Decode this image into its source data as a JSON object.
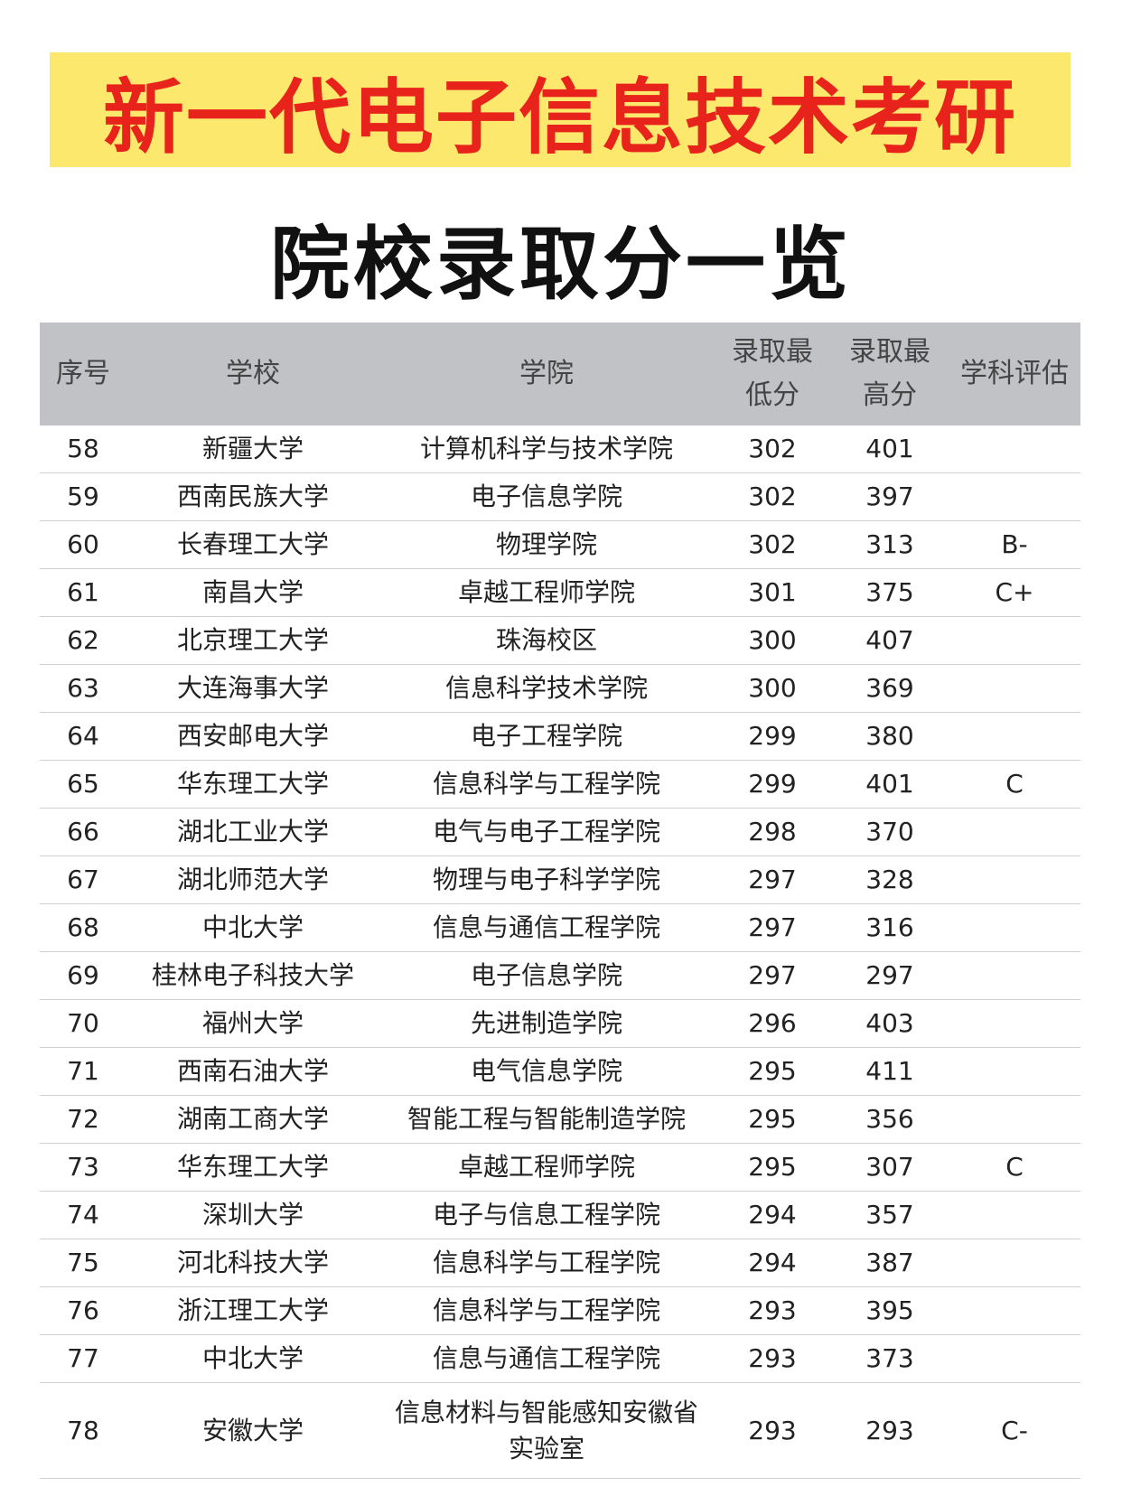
{
  "title": "新一代电子信息技术考研",
  "subtitle": "院校录取分一览",
  "colors": {
    "banner_bg": "#fde86e",
    "title_text": "#e8231c",
    "header_bg": "#c1c2c6"
  },
  "table": {
    "headers": [
      "序号",
      "学校",
      "学院",
      "录取最低分",
      "录取最高分",
      "学科评估"
    ],
    "rows": [
      [
        "58",
        "新疆大学",
        "计算机科学与技术学院",
        "302",
        "401",
        ""
      ],
      [
        "59",
        "西南民族大学",
        "电子信息学院",
        "302",
        "397",
        ""
      ],
      [
        "60",
        "长春理工大学",
        "物理学院",
        "302",
        "313",
        "B-"
      ],
      [
        "61",
        "南昌大学",
        "卓越工程师学院",
        "301",
        "375",
        "C+"
      ],
      [
        "62",
        "北京理工大学",
        "珠海校区",
        "300",
        "407",
        ""
      ],
      [
        "63",
        "大连海事大学",
        "信息科学技术学院",
        "300",
        "369",
        ""
      ],
      [
        "64",
        "西安邮电大学",
        "电子工程学院",
        "299",
        "380",
        ""
      ],
      [
        "65",
        "华东理工大学",
        "信息科学与工程学院",
        "299",
        "401",
        "C"
      ],
      [
        "66",
        "湖北工业大学",
        "电气与电子工程学院",
        "298",
        "370",
        ""
      ],
      [
        "67",
        "湖北师范大学",
        "物理与电子科学学院",
        "297",
        "328",
        ""
      ],
      [
        "68",
        "中北大学",
        "信息与通信工程学院",
        "297",
        "316",
        ""
      ],
      [
        "69",
        "桂林电子科技大学",
        "电子信息学院",
        "297",
        "297",
        ""
      ],
      [
        "70",
        "福州大学",
        "先进制造学院",
        "296",
        "403",
        ""
      ],
      [
        "71",
        "西南石油大学",
        "电气信息学院",
        "295",
        "411",
        ""
      ],
      [
        "72",
        "湖南工商大学",
        "智能工程与智能制造学院",
        "295",
        "356",
        ""
      ],
      [
        "73",
        "华东理工大学",
        "卓越工程师学院",
        "295",
        "307",
        "C"
      ],
      [
        "74",
        "深圳大学",
        "电子与信息工程学院",
        "294",
        "357",
        ""
      ],
      [
        "75",
        "河北科技大学",
        "信息科学与工程学院",
        "294",
        "387",
        ""
      ],
      [
        "76",
        "浙江理工大学",
        "信息科学与工程学院",
        "293",
        "395",
        ""
      ],
      [
        "77",
        "中北大学",
        "信息与通信工程学院",
        "293",
        "373",
        ""
      ],
      [
        "78",
        "安徽大学",
        "信息材料与智能感知安徽省实验室",
        "293",
        "293",
        "C-"
      ]
    ]
  }
}
